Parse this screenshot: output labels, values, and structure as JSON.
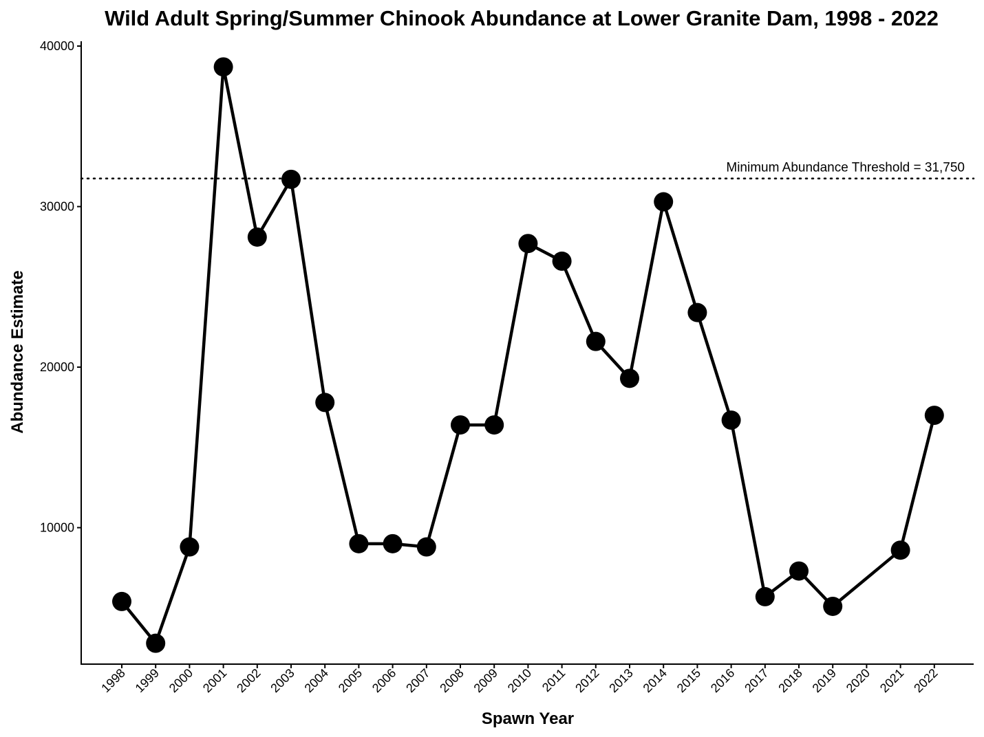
{
  "chart_data": {
    "type": "line",
    "title": "Wild Adult Spring/Summer Chinook Abundance at Lower Granite Dam, 1998 - 2022",
    "xlabel": "Spawn Year",
    "ylabel": "Abundance Estimate",
    "categories": [
      "1998",
      "1999",
      "2000",
      "2001",
      "2002",
      "2003",
      "2004",
      "2005",
      "2006",
      "2007",
      "2008",
      "2009",
      "2010",
      "2011",
      "2012",
      "2013",
      "2014",
      "2015",
      "2016",
      "2017",
      "2018",
      "2019",
      "2020",
      "2021",
      "2022"
    ],
    "series": [
      {
        "points": [
          {
            "x": "1998",
            "y": 5400
          },
          {
            "x": "1999",
            "y": 2800
          },
          {
            "x": "2000",
            "y": 8800
          },
          {
            "x": "2001",
            "y": 38700
          },
          {
            "x": "2002",
            "y": 28100
          },
          {
            "x": "2003",
            "y": 31700
          },
          {
            "x": "2004",
            "y": 17800
          },
          {
            "x": "2005",
            "y": 9000
          },
          {
            "x": "2006",
            "y": 9000
          },
          {
            "x": "2007",
            "y": 8800
          },
          {
            "x": "2008",
            "y": 16400
          },
          {
            "x": "2009",
            "y": 16400
          },
          {
            "x": "2010",
            "y": 27700
          },
          {
            "x": "2011",
            "y": 26600
          },
          {
            "x": "2012",
            "y": 21600
          },
          {
            "x": "2013",
            "y": 19300
          },
          {
            "x": "2014",
            "y": 30300
          },
          {
            "x": "2015",
            "y": 23400
          },
          {
            "x": "2016",
            "y": 16700
          },
          {
            "x": "2017",
            "y": 5700
          },
          {
            "x": "2018",
            "y": 7300
          },
          {
            "x": "2019",
            "y": 5100
          },
          {
            "x": "2021",
            "y": 8600
          },
          {
            "x": "2022",
            "y": 17000
          }
        ]
      }
    ],
    "yticks": [
      10000,
      20000,
      30000,
      40000
    ],
    "ylim": [
      1500,
      40300
    ],
    "threshold": {
      "value": 31750,
      "label": "Minimum Abundance Threshold = 31,750",
      "style": "dotted"
    },
    "grid": false,
    "legend": "none",
    "colors": {
      "line": "#000000",
      "points": "#000000",
      "background": "#ffffff"
    }
  }
}
